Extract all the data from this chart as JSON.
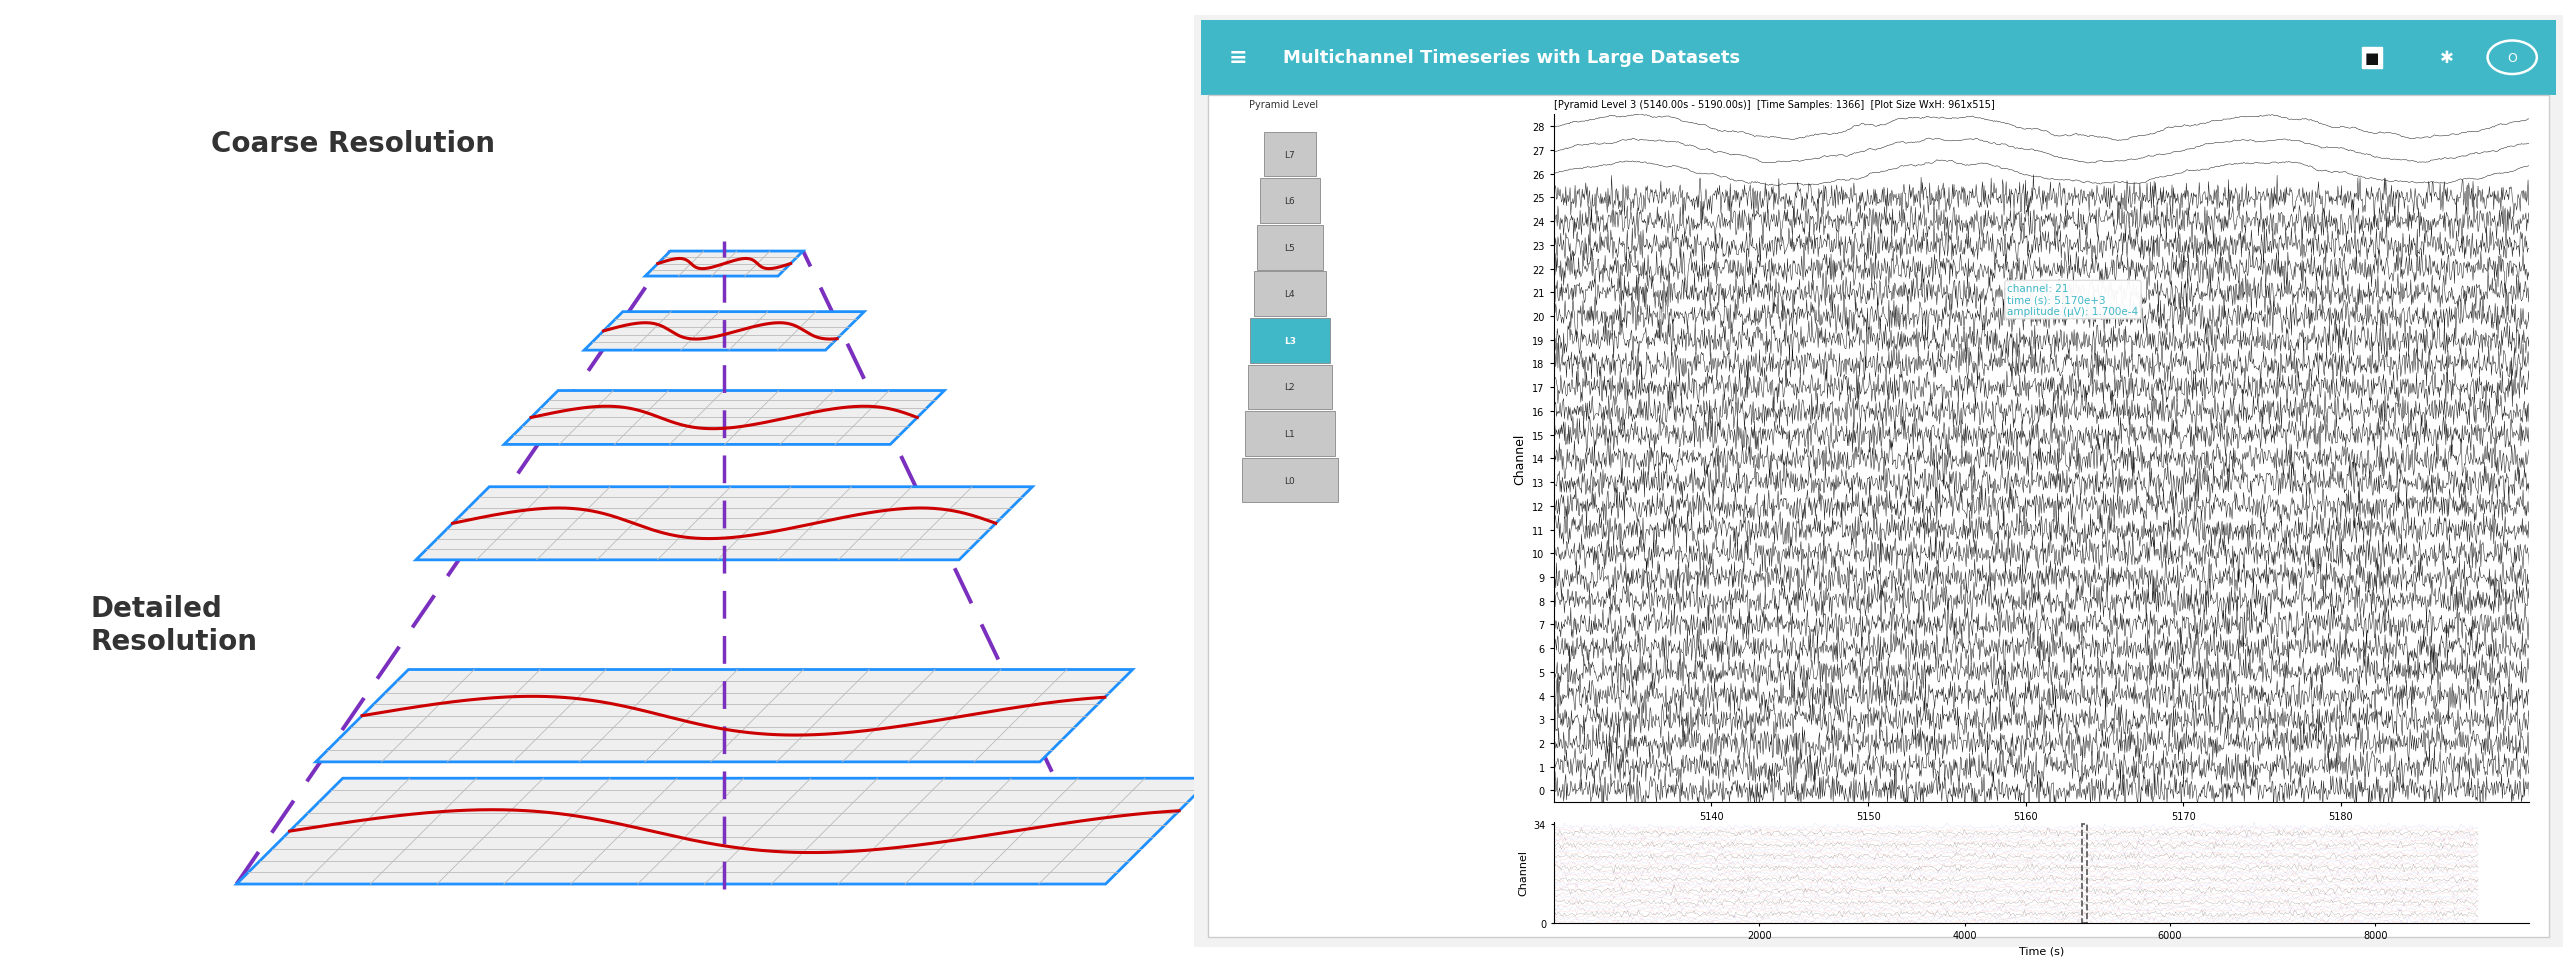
{
  "title": "Multichannel Timeseries with Large Datasets",
  "header_color": "#40B8C8",
  "header_text_color": "#FFFFFF",
  "bg_color": "#FFFFFF",
  "coarse_label": "Coarse Resolution",
  "detailed_label": "Detailed\nResolution",
  "pyramid_levels": [
    "L7",
    "L6",
    "L5",
    "L4",
    "L3",
    "L2",
    "L1",
    "L0"
  ],
  "active_level": "L3",
  "active_level_color": "#40B8C8",
  "inactive_level_color": "#C8C8C8",
  "plot_title": "[Pyramid Level 3 (5140.00s - 5190.00s)]  [Time Samples: 1366]  [Plot Size WxH: 961x515]",
  "main_xlabel": "Time (s)",
  "main_ylabel": "Channel",
  "main_xlim": [
    5130,
    5192
  ],
  "main_ylim": [
    -0.5,
    28.5
  ],
  "main_yticks": [
    0,
    1,
    2,
    3,
    4,
    5,
    6,
    7,
    8,
    9,
    10,
    11,
    12,
    13,
    14,
    15,
    16,
    17,
    18,
    19,
    20,
    21,
    22,
    23,
    24,
    25,
    26,
    27,
    28
  ],
  "main_xticks": [
    5140,
    5150,
    5160,
    5170,
    5180
  ],
  "overview_xlim": [
    0,
    9500
  ],
  "overview_ylim": [
    0,
    35
  ],
  "overview_xticks": [
    2000,
    4000,
    6000,
    8000
  ],
  "overview_xlabel": "Time (s)",
  "overview_ylabel": "Channel",
  "n_channels": 29,
  "tooltip_text": "channel: 21\ntime (s): 5.170e+3\namplitude (μV): 1.700e-4",
  "tooltip_color": "#40B8C8",
  "blue_color": "#1E90FF",
  "purple_color": "#7B2FBE",
  "red_color": "#CC0000",
  "grid_color": "#BBBBBB",
  "plane_fill": "#EFEFEF"
}
